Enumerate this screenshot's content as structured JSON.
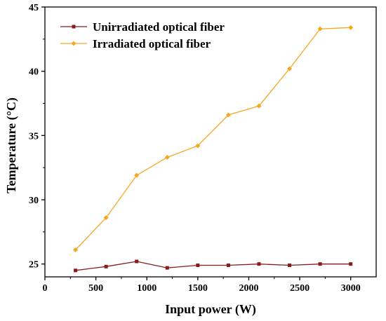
{
  "chart_data": {
    "type": "line",
    "xlabel": "Input power (W)",
    "ylabel": "Temperature (°C)",
    "xlim": [
      0,
      3250
    ],
    "ylim": [
      24,
      45
    ],
    "xticks": [
      0,
      500,
      1000,
      1500,
      2000,
      2500,
      3000
    ],
    "yticks": [
      25,
      30,
      35,
      40,
      45
    ],
    "x": [
      300,
      600,
      900,
      1200,
      1500,
      1800,
      2100,
      2400,
      2700,
      3000
    ],
    "series": [
      {
        "name": "Unirradiated optical fiber",
        "color": "#8b1a1a",
        "marker": "square",
        "values": [
          24.5,
          24.8,
          25.2,
          24.7,
          24.9,
          24.9,
          25.0,
          24.9,
          25.0,
          25.0
        ]
      },
      {
        "name": "Irradiated optical fiber",
        "color": "#f5a623",
        "marker": "diamond",
        "values": [
          26.1,
          28.6,
          31.9,
          33.3,
          34.2,
          36.6,
          37.3,
          40.2,
          43.3,
          43.4
        ]
      }
    ],
    "legend_position": "top-left",
    "grid": false
  }
}
